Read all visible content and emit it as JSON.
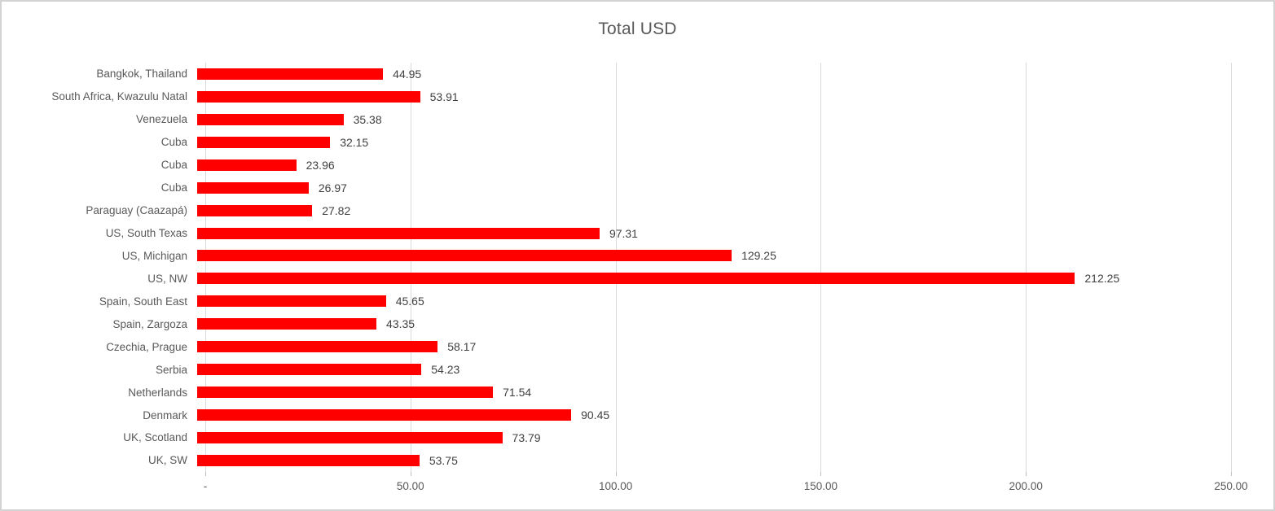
{
  "chart_data": {
    "type": "bar",
    "orientation": "horizontal",
    "title": "Total USD",
    "categories": [
      "Bangkok, Thailand",
      "South Africa, Kwazulu Natal",
      "Venezuela",
      "Cuba",
      "Cuba",
      "Cuba",
      "Paraguay (Caazapá)",
      "US, South Texas",
      "US, Michigan",
      "US, NW",
      "Spain, South East",
      "Spain, Zargoza",
      "Czechia, Prague",
      "Serbia",
      "Netherlands",
      "Denmark",
      "UK, Scotland",
      "UK, SW"
    ],
    "values": [
      44.95,
      53.91,
      35.38,
      32.15,
      23.96,
      26.97,
      27.82,
      97.31,
      129.25,
      212.25,
      45.65,
      43.35,
      58.17,
      54.23,
      71.54,
      90.45,
      73.79,
      53.75
    ],
    "value_labels": [
      "44.95",
      "53.91",
      "35.38",
      "32.15",
      "23.96",
      "26.97",
      "27.82",
      "97.31",
      "129.25",
      "212.25",
      "45.65",
      "43.35",
      "58.17",
      "54.23",
      "71.54",
      "90.45",
      "73.79",
      "53.75"
    ],
    "xlabel": "",
    "ylabel": "",
    "xlim": [
      0,
      250
    ],
    "x_tick_values": [
      0,
      50,
      100,
      150,
      200,
      250
    ],
    "x_tick_labels": [
      "-",
      "50.00",
      "100.00",
      "150.00",
      "200.00",
      "250.00"
    ],
    "grid": true,
    "legend": false,
    "bar_color": "#ff0000",
    "gridline_color": "#d9d9d9",
    "title_color": "#595959",
    "axis_label_color": "#595959",
    "data_label_color": "#404040"
  }
}
